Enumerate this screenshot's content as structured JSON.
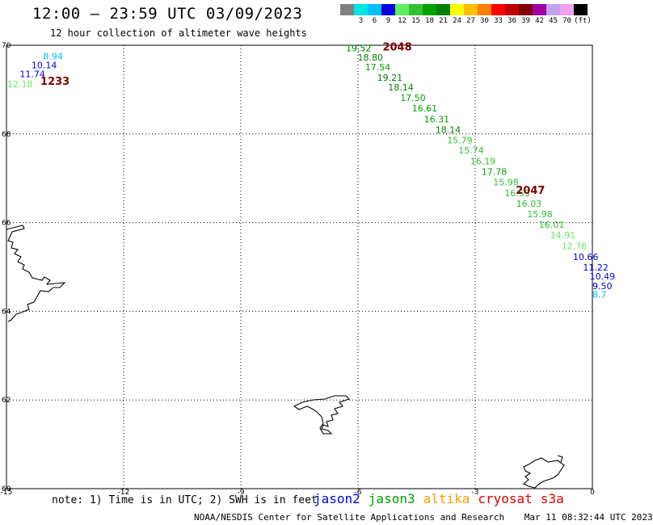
{
  "header": {
    "title": "12:00 – 23:59 UTC 03/09/2023",
    "subtitle": "12 hour collection of altimeter wave heights"
  },
  "legend": {
    "unit_label": "(ft)",
    "bins": [
      {
        "label": "",
        "color": "#808080"
      },
      {
        "label": "3",
        "color": "#00e5e5"
      },
      {
        "label": "6",
        "color": "#00bfff"
      },
      {
        "label": "9",
        "color": "#0000e0"
      },
      {
        "label": "12",
        "color": "#60ee60"
      },
      {
        "label": "15",
        "color": "#30c030"
      },
      {
        "label": "18",
        "color": "#00a000"
      },
      {
        "label": "21",
        "color": "#008000"
      },
      {
        "label": "24",
        "color": "#ffff00"
      },
      {
        "label": "27",
        "color": "#ffc000"
      },
      {
        "label": "30",
        "color": "#ff8000"
      },
      {
        "label": "33",
        "color": "#ff0000"
      },
      {
        "label": "36",
        "color": "#c00000"
      },
      {
        "label": "39",
        "color": "#800000"
      },
      {
        "label": "42",
        "color": "#a000a0"
      },
      {
        "label": "45",
        "color": "#c8a0f0"
      },
      {
        "label": "70",
        "color": "#f0a0f0"
      },
      {
        "label": "",
        "color": "#000000"
      }
    ]
  },
  "map": {
    "lon_range": [
      -15,
      0
    ],
    "lat_range": [
      60,
      70
    ],
    "lon_ticks": [
      "-15",
      "-12",
      "-9",
      "-6",
      "-3",
      "0"
    ],
    "lat_ticks": [
      "70",
      "68",
      "66",
      "64",
      "62",
      "60"
    ],
    "lon_tick_values": [
      -15,
      -12,
      -9,
      -6,
      -3,
      0
    ],
    "lat_tick_values": [
      70,
      68,
      66,
      64,
      62,
      60
    ]
  },
  "tracks": [
    {
      "satellite": "jason3",
      "time_label": "1233",
      "time_label_lon": -14.13,
      "time_label_lat": 69.18,
      "points": [
        {
          "lon": -14.06,
          "lat": 69.75,
          "value": "8.94",
          "color": "#00bfff"
        },
        {
          "lon": -14.36,
          "lat": 69.55,
          "value": "10.14",
          "color": "#0000e0"
        },
        {
          "lon": -14.66,
          "lat": 69.35,
          "value": "11.74",
          "color": "#0000e0"
        },
        {
          "lon": -14.98,
          "lat": 69.13,
          "value": "12.18",
          "color": "#60ee60"
        }
      ]
    },
    {
      "satellite": "jason3",
      "time_label": "2048",
      "time_label_lon": -5.37,
      "time_label_lat": 69.95,
      "points": [
        {
          "lon": -6.31,
          "lat": 69.94,
          "value": "19.52",
          "color": "#008000"
        },
        {
          "lon": -6.01,
          "lat": 69.73,
          "value": "18.80",
          "color": "#008000"
        },
        {
          "lon": -5.82,
          "lat": 69.51,
          "value": "17.54",
          "color": "#00a000"
        },
        {
          "lon": -5.51,
          "lat": 69.27,
          "value": "19.21",
          "color": "#008000"
        },
        {
          "lon": -5.23,
          "lat": 69.05,
          "value": "18.14",
          "color": "#008000"
        },
        {
          "lon": -4.92,
          "lat": 68.82,
          "value": "17.50",
          "color": "#00a000"
        },
        {
          "lon": -4.62,
          "lat": 68.58,
          "value": "16.61",
          "color": "#00a000"
        },
        {
          "lon": -4.31,
          "lat": 68.33,
          "value": "16.31",
          "color": "#00a000"
        },
        {
          "lon": -4.02,
          "lat": 68.1,
          "value": "18.14",
          "color": "#008000"
        },
        {
          "lon": -3.72,
          "lat": 67.86,
          "value": "15.79",
          "color": "#30c030"
        },
        {
          "lon": -3.43,
          "lat": 67.63,
          "value": "15.74",
          "color": "#30c030"
        },
        {
          "lon": -3.13,
          "lat": 67.39,
          "value": "16.19",
          "color": "#30c030"
        },
        {
          "lon": -2.84,
          "lat": 67.15,
          "value": "17.78",
          "color": "#00a000"
        },
        {
          "lon": -2.54,
          "lat": 66.91,
          "value": "15.98",
          "color": "#30c030"
        },
        {
          "lon": -2.25,
          "lat": 66.67,
          "value": "16.53",
          "color": "#30c030"
        },
        {
          "lon": -1.95,
          "lat": 66.43,
          "value": "16.03",
          "color": "#30c030"
        },
        {
          "lon": -1.67,
          "lat": 66.19,
          "value": "15.98",
          "color": "#30c030"
        },
        {
          "lon": -1.37,
          "lat": 65.96,
          "value": "16.01",
          "color": "#30c030"
        },
        {
          "lon": -1.08,
          "lat": 65.72,
          "value": "14.91",
          "color": "#60ee60"
        },
        {
          "lon": -0.79,
          "lat": 65.47,
          "value": "12.76",
          "color": "#60ee60"
        },
        {
          "lon": -0.5,
          "lat": 65.23,
          "value": "10.66",
          "color": "#0000e0"
        },
        {
          "lon": -0.24,
          "lat": 64.99,
          "value": "11.22",
          "color": "#0000e0"
        },
        {
          "lon": -0.07,
          "lat": 64.79,
          "value": "10.49",
          "color": "#0000e0"
        },
        {
          "lon": 0.0,
          "lat": 64.57,
          "value": "9.50",
          "color": "#0000e0"
        },
        {
          "lon": 0.0,
          "lat": 64.38,
          "value": "8.7",
          "color": "#00bfff"
        }
      ]
    },
    {
      "satellite": "jason3",
      "time_label": "2047",
      "time_label_lon": -1.96,
      "time_label_lat": 66.72,
      "points": []
    }
  ],
  "time_label_color": "#800000",
  "note": "note:  1) Time is in UTC; 2) SWH is in feet",
  "satellites": [
    {
      "name": "jason2",
      "color": "#0000e0"
    },
    {
      "name": "jason3",
      "color": "#00a000"
    },
    {
      "name": "altika",
      "color": "#ff9a00"
    },
    {
      "name": "cryosat",
      "color": "#e00000"
    },
    {
      "name": "s3a",
      "color": "#e00000"
    }
  ],
  "footer": {
    "credit": "NOAA/NESDIS Center for Satellite Applications and Research",
    "timestamp": "Mar 11 08:32:44 UTC 2023"
  }
}
